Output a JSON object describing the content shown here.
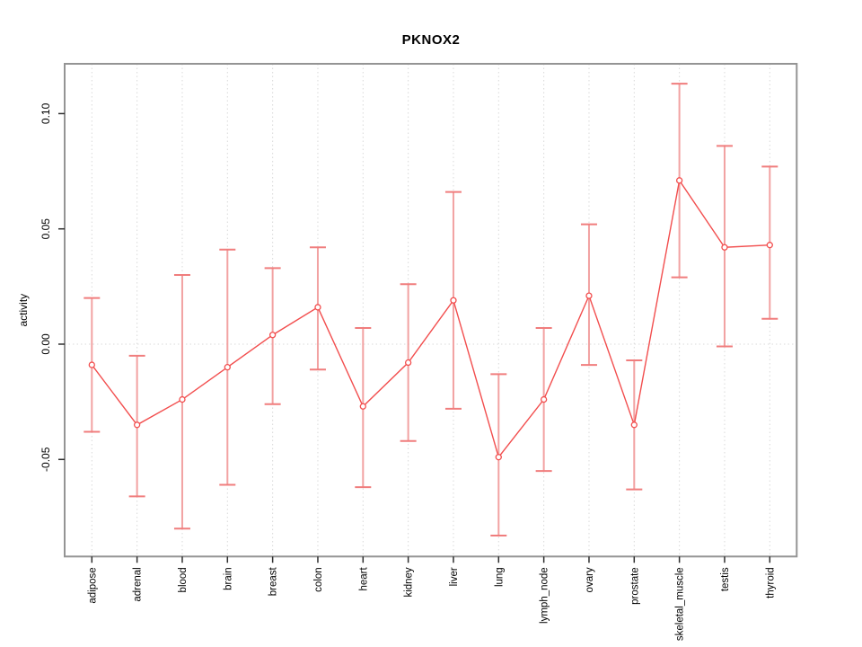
{
  "window": {
    "background": "#ffffff"
  },
  "chart_data": {
    "type": "line",
    "title": "PKNOX2",
    "xlabel": "",
    "ylabel": "activity",
    "categories": [
      "adipose",
      "adrenal",
      "blood",
      "brain",
      "breast",
      "colon",
      "heart",
      "kidney",
      "liver",
      "lung",
      "lymph_node",
      "ovary",
      "prostate",
      "skeletal_muscle",
      "testis",
      "thyroid"
    ],
    "series": [
      {
        "name": "activity",
        "values": [
          -0.009,
          -0.035,
          -0.024,
          -0.01,
          0.004,
          0.016,
          -0.027,
          -0.008,
          0.019,
          -0.049,
          -0.024,
          0.021,
          -0.035,
          0.071,
          0.042,
          0.043
        ],
        "lower": [
          -0.038,
          -0.066,
          -0.08,
          -0.061,
          -0.026,
          -0.011,
          -0.062,
          -0.042,
          -0.028,
          -0.083,
          -0.055,
          -0.009,
          -0.063,
          0.029,
          -0.001,
          0.011
        ],
        "upper": [
          0.02,
          -0.005,
          0.03,
          0.041,
          0.033,
          0.042,
          0.007,
          0.026,
          0.066,
          -0.013,
          0.007,
          0.052,
          -0.007,
          0.113,
          0.086,
          0.077
        ]
      }
    ],
    "ylim": [
      -0.0921,
      0.1216
    ],
    "yticks": [
      {
        "value": 0.1,
        "label": "0.10"
      },
      {
        "value": 0.05,
        "label": "0.05"
      },
      {
        "value": 0.0,
        "label": "0.00"
      },
      {
        "value": -0.05,
        "label": "-0.05"
      }
    ],
    "grid": {
      "vertical_at_categories": true,
      "horizontal_at_zero": true,
      "style": "dotted"
    },
    "legend": "none",
    "marker": "open-circle",
    "colors": {
      "series_line": "#f24e4e",
      "marker_stroke": "#f24e4e",
      "marker_fill": "#ffffff",
      "errorbar_line": "#f2a2a2",
      "errorbar_cap": "#f07d7d",
      "gridline": "#d9d9d9",
      "plot_border": "#949494",
      "tick": "#2e2e2e",
      "label_text": "#000000"
    }
  }
}
